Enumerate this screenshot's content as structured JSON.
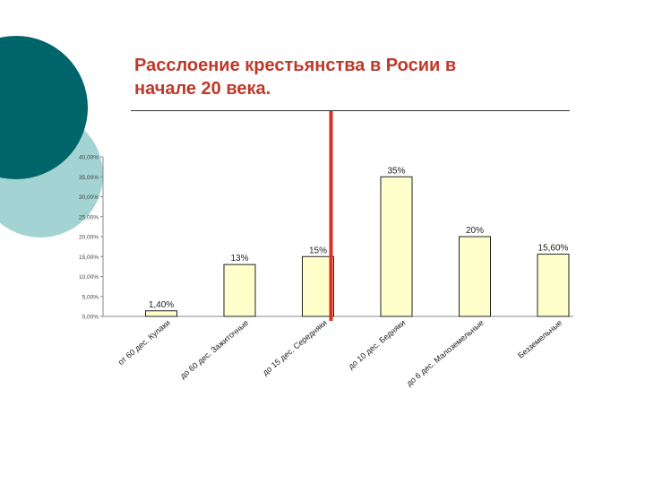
{
  "slide": {
    "title_line1": "Расслоение крестьянства в Росии в",
    "title_line2": "начале 20 века.",
    "accent_color": "#c0392b",
    "deco_colors": [
      "#00656a",
      "#a3d3d3"
    ]
  },
  "chart_data": {
    "type": "bar",
    "title": "",
    "categories": [
      "от 60 дес. Кулаки",
      "до 60 дес. Зажиточные",
      "до 15 дес. Середняки",
      "до 10 дес. Бедняки",
      "до 6 дес. Малоземельные",
      "Безземельные"
    ],
    "values": [
      1.4,
      13,
      15,
      35,
      20,
      15.6
    ],
    "value_labels": [
      "1,40%",
      "13%",
      "15%",
      "35%",
      "20%",
      "15,60%"
    ],
    "ylim": [
      0,
      40
    ],
    "yticks": [
      "0,00%",
      "5,00%",
      "10,00%",
      "15,00%",
      "20,00%",
      "25,00%",
      "30,00%",
      "35,00%",
      "40,00%"
    ],
    "bar_color": "#ffffcc",
    "divider_color": "#d93025",
    "grid": false,
    "legend": "none"
  }
}
